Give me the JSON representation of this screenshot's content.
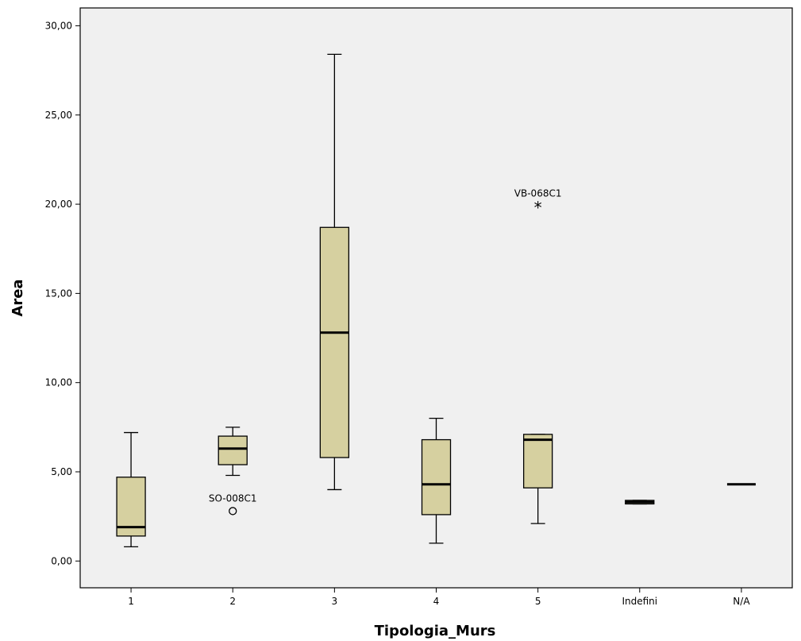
{
  "chart_data": {
    "type": "boxplot",
    "title": "",
    "xlabel": "Tipologia_Murs",
    "ylabel": "Area",
    "ylim": [
      -1.5,
      31
    ],
    "yticks": [
      0,
      5,
      10,
      15,
      20,
      25,
      30
    ],
    "ytick_labels": [
      "0,00",
      "5,00",
      "10,00",
      "15,00",
      "20,00",
      "25,00",
      "30,00"
    ],
    "categories": [
      "1",
      "2",
      "3",
      "4",
      "5",
      "Indefini",
      "N/A"
    ],
    "boxes": [
      {
        "category": "1",
        "min": 0.8,
        "q1": 1.4,
        "median": 1.9,
        "q3": 4.7,
        "max": 7.2
      },
      {
        "category": "2",
        "min": 4.8,
        "q1": 5.4,
        "median": 6.3,
        "q3": 7.0,
        "max": 7.5
      },
      {
        "category": "3",
        "min": 4.0,
        "q1": 5.8,
        "median": 12.8,
        "q3": 18.7,
        "max": 28.4
      },
      {
        "category": "4",
        "min": 1.0,
        "q1": 2.6,
        "median": 4.3,
        "q3": 6.8,
        "max": 8.0
      },
      {
        "category": "5",
        "min": 2.1,
        "q1": 4.1,
        "median": 6.8,
        "q3": 7.1,
        "max": 7.1
      },
      {
        "category": "Indefini",
        "min": 3.2,
        "q1": 3.2,
        "median": 3.3,
        "q3": 3.4,
        "max": 3.4
      },
      {
        "category": "N/A",
        "min": 4.3,
        "q1": 4.3,
        "median": 4.3,
        "q3": 4.3,
        "max": 4.3
      }
    ],
    "outliers": [
      {
        "category": "2",
        "value": 2.8,
        "marker": "o",
        "label": "SO-008C1"
      },
      {
        "category": "5",
        "value": 19.9,
        "marker": "*",
        "label": "VB-068C1"
      }
    ],
    "colors": {
      "box_fill": "#d6d0a0",
      "plot_bg": "#f0f0f0",
      "stroke": "#000000"
    },
    "grid": false,
    "legend": "none"
  }
}
